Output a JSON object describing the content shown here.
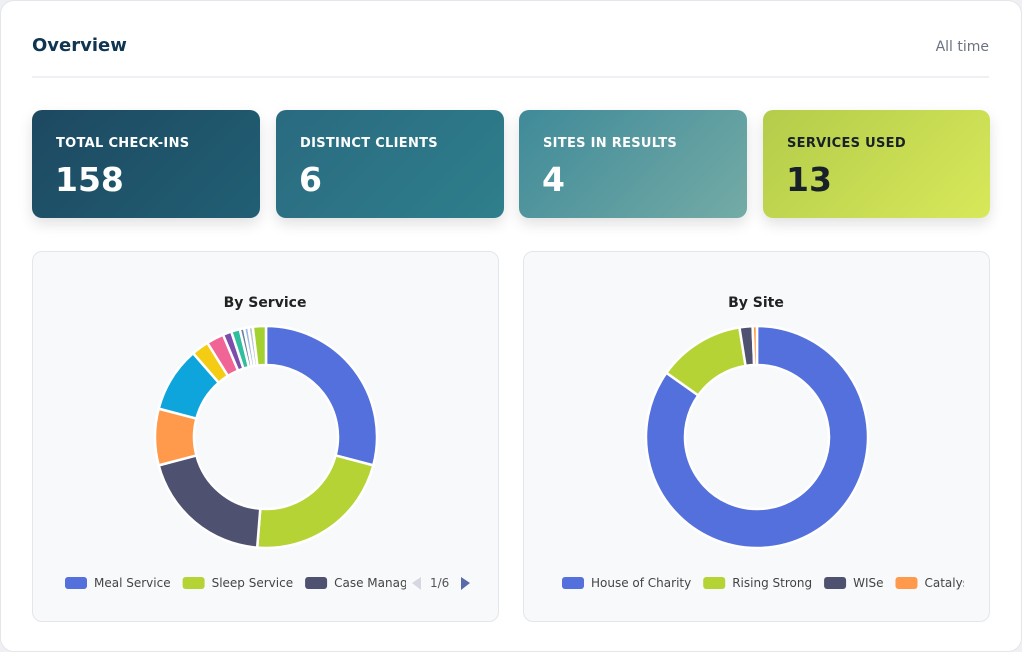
{
  "header": {
    "title": "Overview",
    "range": "All time"
  },
  "stats": [
    {
      "label": "TOTAL CHECK-INS",
      "value": 158
    },
    {
      "label": "DISTINCT CLIENTS",
      "value": 6
    },
    {
      "label": "SITES IN RESULTS",
      "value": 4
    },
    {
      "label": "SERVICES USED",
      "value": 13
    }
  ],
  "chart_data": [
    {
      "type": "donut",
      "title": "By Service",
      "categories": [
        "Meal Service",
        "Sleep Service",
        "Case Management",
        null,
        null,
        null,
        null,
        null,
        null,
        null,
        null,
        null,
        null
      ],
      "values": [
        46,
        35,
        31,
        13,
        15,
        4,
        4,
        2,
        2,
        1,
        1,
        1,
        3
      ],
      "colors": [
        "#5470dc",
        "#b5d334",
        "#4f5170",
        "#ff9a4d",
        "#0ea5dc",
        "#f5cc14",
        "#f06595",
        "#7c4dab",
        "#2fbf9f",
        "#6f7fa0",
        "#9ab8e8",
        "#c0c4cc",
        "#a3d12f"
      ],
      "pagination": "1/6"
    },
    {
      "type": "donut",
      "title": "By Site",
      "categories": [
        "House of Charity",
        "Rising Strong",
        "WISe",
        "Catalyst"
      ],
      "values": [
        134,
        20,
        3,
        1
      ],
      "colors": [
        "#5470dc",
        "#b5d334",
        "#4f5170",
        "#ff9a4d"
      ]
    }
  ]
}
